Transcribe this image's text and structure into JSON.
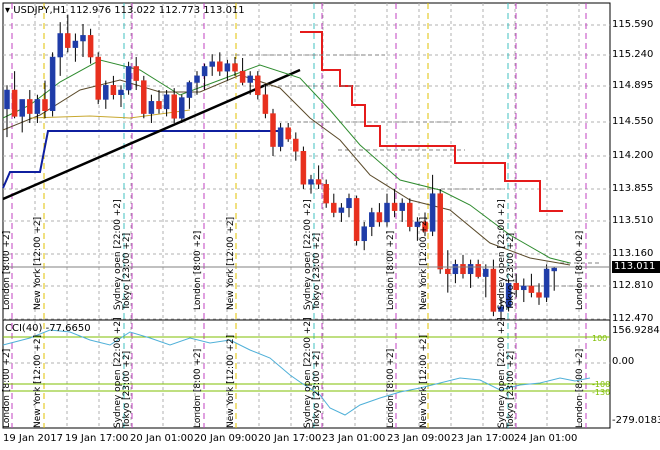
{
  "header": {
    "symbol_label": "USDJPY,H1",
    "ohlc": "112.976 113.022 112.773 113.011",
    "dropdown_icon": "triangle-down-icon"
  },
  "indicator": {
    "label": "CCI(40) -77.6650",
    "max_label": "156.9284",
    "zero_label": "0.00",
    "min_label": "-279.0183",
    "level_plus": "100",
    "level_minus": "-100",
    "level_minus2": "-130"
  },
  "price_axis": [
    "115.590",
    "115.240",
    "114.895",
    "114.550",
    "114.200",
    "113.855",
    "113.510",
    "113.160",
    "112.810",
    "112.470"
  ],
  "current_price": "113.011",
  "time_axis": [
    "19 Jan 2017",
    "19 Jan 17:00",
    "20 Jan 01:00",
    "20 Jan 09:00",
    "20 Jan 17:00",
    "23 Jan 01:00",
    "23 Jan 09:00",
    "23 Jan 17:00",
    "24 Jan 01:00"
  ],
  "sessions": {
    "london": "London [8:00 +2]",
    "newyork": "New York [12:00 +2]",
    "sydney": "Sydney open [22:00 +2]",
    "tokyo": "Tokyo [23:00 +2]"
  },
  "colors": {
    "bull": "#1f3ca8",
    "bear": "#e8301e",
    "red_line": "#e51b1b",
    "blue_line": "#0f1f9f",
    "green_ma": "#2e8b2e",
    "cci_line": "#4fb0d8",
    "level_line": "#7fbf00",
    "grid": "#b0b0b0"
  }
}
